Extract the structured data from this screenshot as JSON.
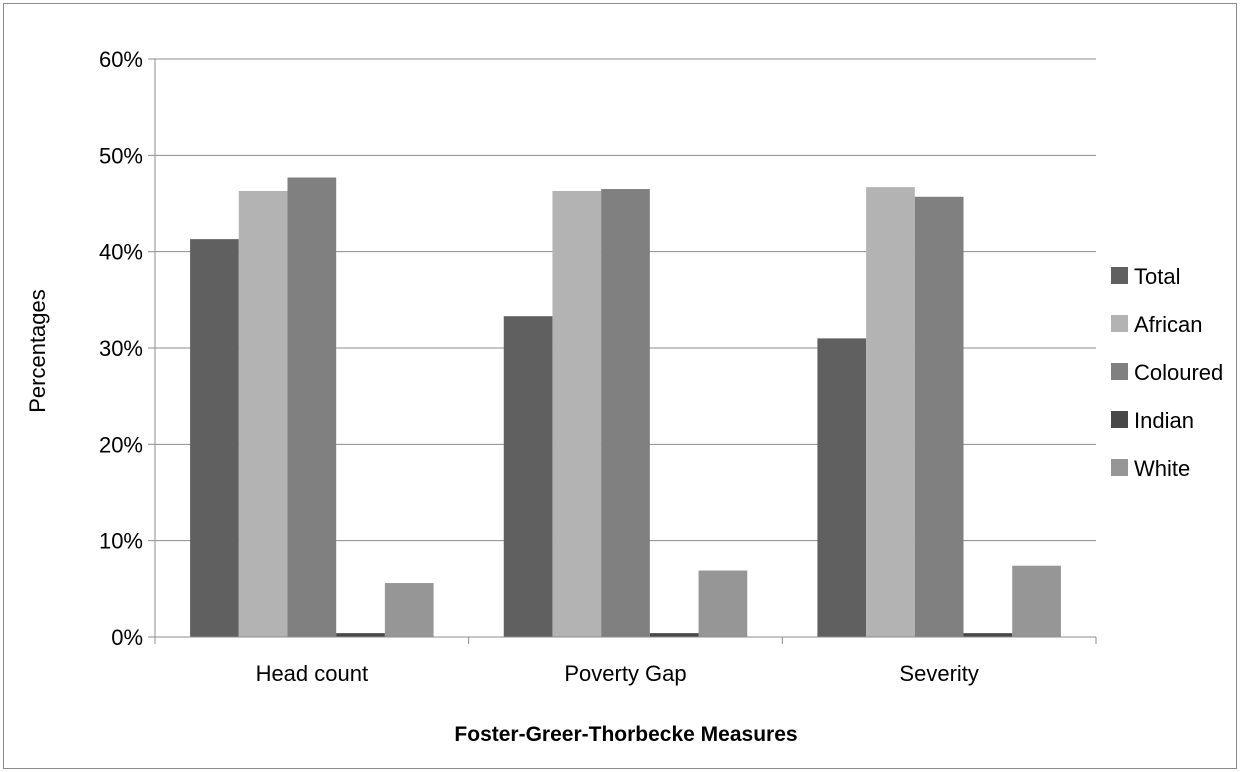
{
  "chart_data": {
    "type": "bar",
    "title": "",
    "xlabel": "Foster-Greer-Thorbecke Measures",
    "ylabel": "Percentages",
    "ylim": [
      0,
      60
    ],
    "y_ticks": [
      "0%",
      "10%",
      "20%",
      "30%",
      "40%",
      "50%",
      "60%"
    ],
    "y_tick_values": [
      0,
      10,
      20,
      30,
      40,
      50,
      60
    ],
    "grid": true,
    "legend": "right",
    "categories": [
      "Head count",
      "Poverty Gap",
      "Severity"
    ],
    "series": [
      {
        "name": "Total",
        "color": "#606060",
        "values": [
          41.3,
          33.3,
          31.0
        ]
      },
      {
        "name": "African",
        "color": "#b3b3b3",
        "values": [
          46.3,
          46.3,
          46.7
        ]
      },
      {
        "name": "Coloured",
        "color": "#808080",
        "values": [
          47.7,
          46.5,
          45.7
        ]
      },
      {
        "name": "Indian",
        "color": "#474747",
        "values": [
          0.4,
          0.4,
          0.4
        ]
      },
      {
        "name": "White",
        "color": "#969696",
        "values": [
          5.6,
          6.9,
          7.4
        ]
      }
    ]
  }
}
